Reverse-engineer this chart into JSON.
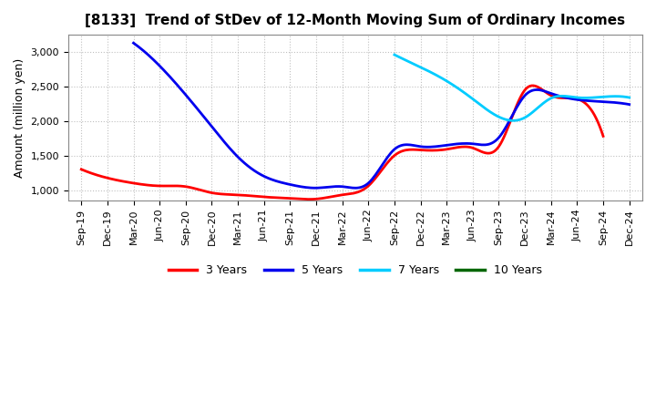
{
  "title": "[8133]  Trend of StDev of 12-Month Moving Sum of Ordinary Incomes",
  "ylabel": "Amount (million yen)",
  "background_color": "#ffffff",
  "grid_color": "#b0b0b0",
  "ylim": [
    850,
    3250
  ],
  "yticks": [
    1000,
    1500,
    2000,
    2500,
    3000
  ],
  "series": {
    "3 Years": {
      "color": "#ff0000",
      "data": [
        [
          0,
          1300
        ],
        [
          1,
          1175
        ],
        [
          2,
          1100
        ],
        [
          3,
          1060
        ],
        [
          4,
          1050
        ],
        [
          5,
          960
        ],
        [
          6,
          930
        ],
        [
          7,
          900
        ],
        [
          8,
          880
        ],
        [
          9,
          870
        ],
        [
          10,
          930
        ],
        [
          11,
          1060
        ],
        [
          12,
          1500
        ],
        [
          13,
          1580
        ],
        [
          14,
          1590
        ],
        [
          15,
          1610
        ],
        [
          16,
          1630
        ],
        [
          17,
          2450
        ],
        [
          18,
          2370
        ],
        [
          19,
          2320
        ],
        [
          20,
          1780
        ]
      ]
    },
    "5 Years": {
      "color": "#0000ee",
      "data": [
        [
          2,
          3130
        ],
        [
          3,
          2800
        ],
        [
          4,
          2380
        ],
        [
          5,
          1920
        ],
        [
          6,
          1480
        ],
        [
          7,
          1200
        ],
        [
          8,
          1080
        ],
        [
          9,
          1030
        ],
        [
          10,
          1050
        ],
        [
          11,
          1100
        ],
        [
          12,
          1590
        ],
        [
          13,
          1630
        ],
        [
          14,
          1650
        ],
        [
          15,
          1670
        ],
        [
          16,
          1760
        ],
        [
          17,
          2370
        ],
        [
          18,
          2400
        ],
        [
          19,
          2310
        ],
        [
          20,
          2280
        ],
        [
          21,
          2240
        ]
      ]
    },
    "7 Years": {
      "color": "#00ccff",
      "data": [
        [
          12,
          2960
        ],
        [
          13,
          2780
        ],
        [
          14,
          2580
        ],
        [
          15,
          2320
        ],
        [
          16,
          2060
        ],
        [
          17,
          2050
        ],
        [
          18,
          2330
        ],
        [
          19,
          2340
        ],
        [
          20,
          2350
        ],
        [
          21,
          2340
        ]
      ]
    },
    "10 Years": {
      "color": "#006600",
      "data": []
    }
  },
  "x_labels": [
    "Sep-19",
    "Dec-19",
    "Mar-20",
    "Jun-20",
    "Sep-20",
    "Dec-20",
    "Mar-21",
    "Jun-21",
    "Sep-21",
    "Dec-21",
    "Mar-22",
    "Jun-22",
    "Sep-22",
    "Dec-22",
    "Mar-23",
    "Jun-23",
    "Sep-23",
    "Dec-23",
    "Mar-24",
    "Jun-24",
    "Sep-24",
    "Dec-24"
  ],
  "legend_labels": [
    "3 Years",
    "5 Years",
    "7 Years",
    "10 Years"
  ],
  "legend_colors": [
    "#ff0000",
    "#0000ee",
    "#00ccff",
    "#006600"
  ],
  "linewidth": 2.0,
  "title_fontsize": 11,
  "axis_fontsize": 9,
  "tick_fontsize": 8,
  "legend_fontsize": 9
}
